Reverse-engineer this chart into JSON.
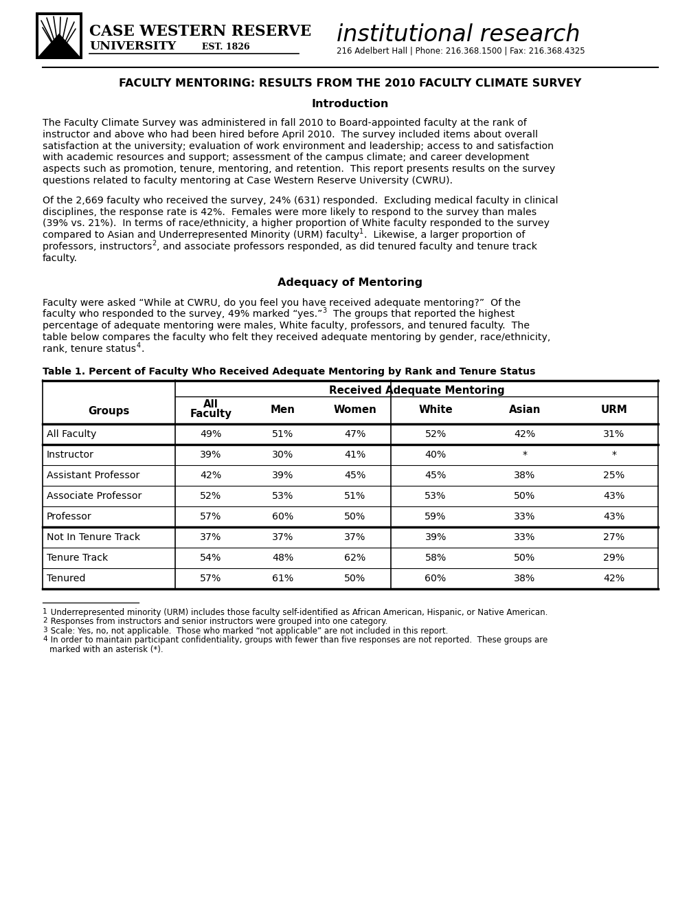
{
  "title": "FACULTY MENTORING: RESULTS FROM THE 2010 FACULTY CLIMATE SURVEY",
  "intro_heading": "Introduction",
  "adequacy_heading": "Adequacy of Mentoring",
  "table_title": "Table 1. Percent of Faculty Who Received Adequate Mentoring by Rank and Tenure Status",
  "table_header_main": "Received Adequate Mentoring",
  "table_col_headers": [
    "Groups",
    "All\nFaculty",
    "Men",
    "Women",
    "White",
    "Asian",
    "URM"
  ],
  "table_rows": [
    [
      "All Faculty",
      "49%",
      "51%",
      "47%",
      "52%",
      "42%",
      "31%"
    ],
    [
      "Instructor",
      "39%",
      "30%",
      "41%",
      "40%",
      "*",
      "*"
    ],
    [
      "Assistant Professor",
      "42%",
      "39%",
      "45%",
      "45%",
      "38%",
      "25%"
    ],
    [
      "Associate Professor",
      "52%",
      "53%",
      "51%",
      "53%",
      "50%",
      "43%"
    ],
    [
      "Professor",
      "57%",
      "60%",
      "50%",
      "59%",
      "33%",
      "43%"
    ],
    [
      "Not In Tenure Track",
      "37%",
      "37%",
      "37%",
      "39%",
      "33%",
      "27%"
    ],
    [
      "Tenure Track",
      "54%",
      "48%",
      "62%",
      "58%",
      "50%",
      "29%"
    ],
    [
      "Tenured",
      "57%",
      "61%",
      "50%",
      "60%",
      "38%",
      "42%"
    ]
  ],
  "footnote1": "1 Underrepresented minority (URM) includes those faculty self-identified as African American, Hispanic, or Native American.",
  "footnote2": "2 Responses from instructors and senior instructors were grouped into one category.",
  "footnote3": "3 Scale: Yes, no, not applicable.  Those who marked “not applicable” are not included in this report.",
  "footnote4": "4 In order to maintain participant confidentiality, groups with fewer than five responses are not reported.  These groups are marked with an asterisk (*).",
  "background_color": "#ffffff"
}
